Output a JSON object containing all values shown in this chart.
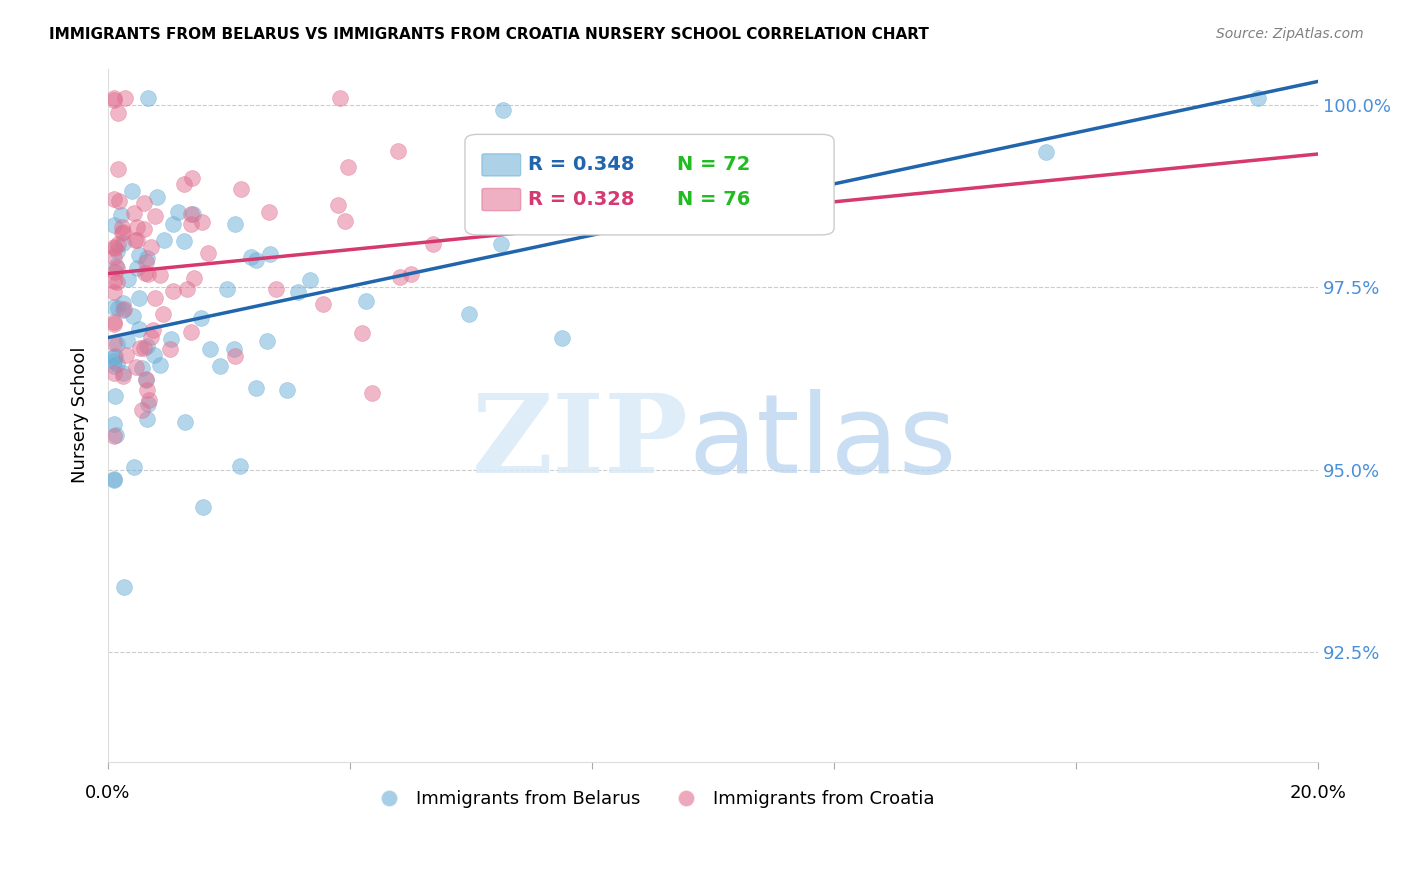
{
  "title": "IMMIGRANTS FROM BELARUS VS IMMIGRANTS FROM CROATIA NURSERY SCHOOL CORRELATION CHART",
  "source": "Source: ZipAtlas.com",
  "ylabel": "Nursery School",
  "ytick_labels": [
    "100.0%",
    "97.5%",
    "95.0%",
    "92.5%"
  ],
  "ytick_values": [
    1.0,
    0.975,
    0.95,
    0.925
  ],
  "xlim": [
    0.0,
    0.2
  ],
  "ylim": [
    0.91,
    1.005
  ],
  "legend1_r": "R = 0.348",
  "legend1_n": "N = 72",
  "legend2_r": "R = 0.328",
  "legend2_n": "N = 76",
  "color_blue": "#6baed6",
  "color_pink": "#e07090",
  "trendline_blue": "#2166ac",
  "trendline_pink": "#d63870",
  "n_blue": 72,
  "n_pink": 76
}
